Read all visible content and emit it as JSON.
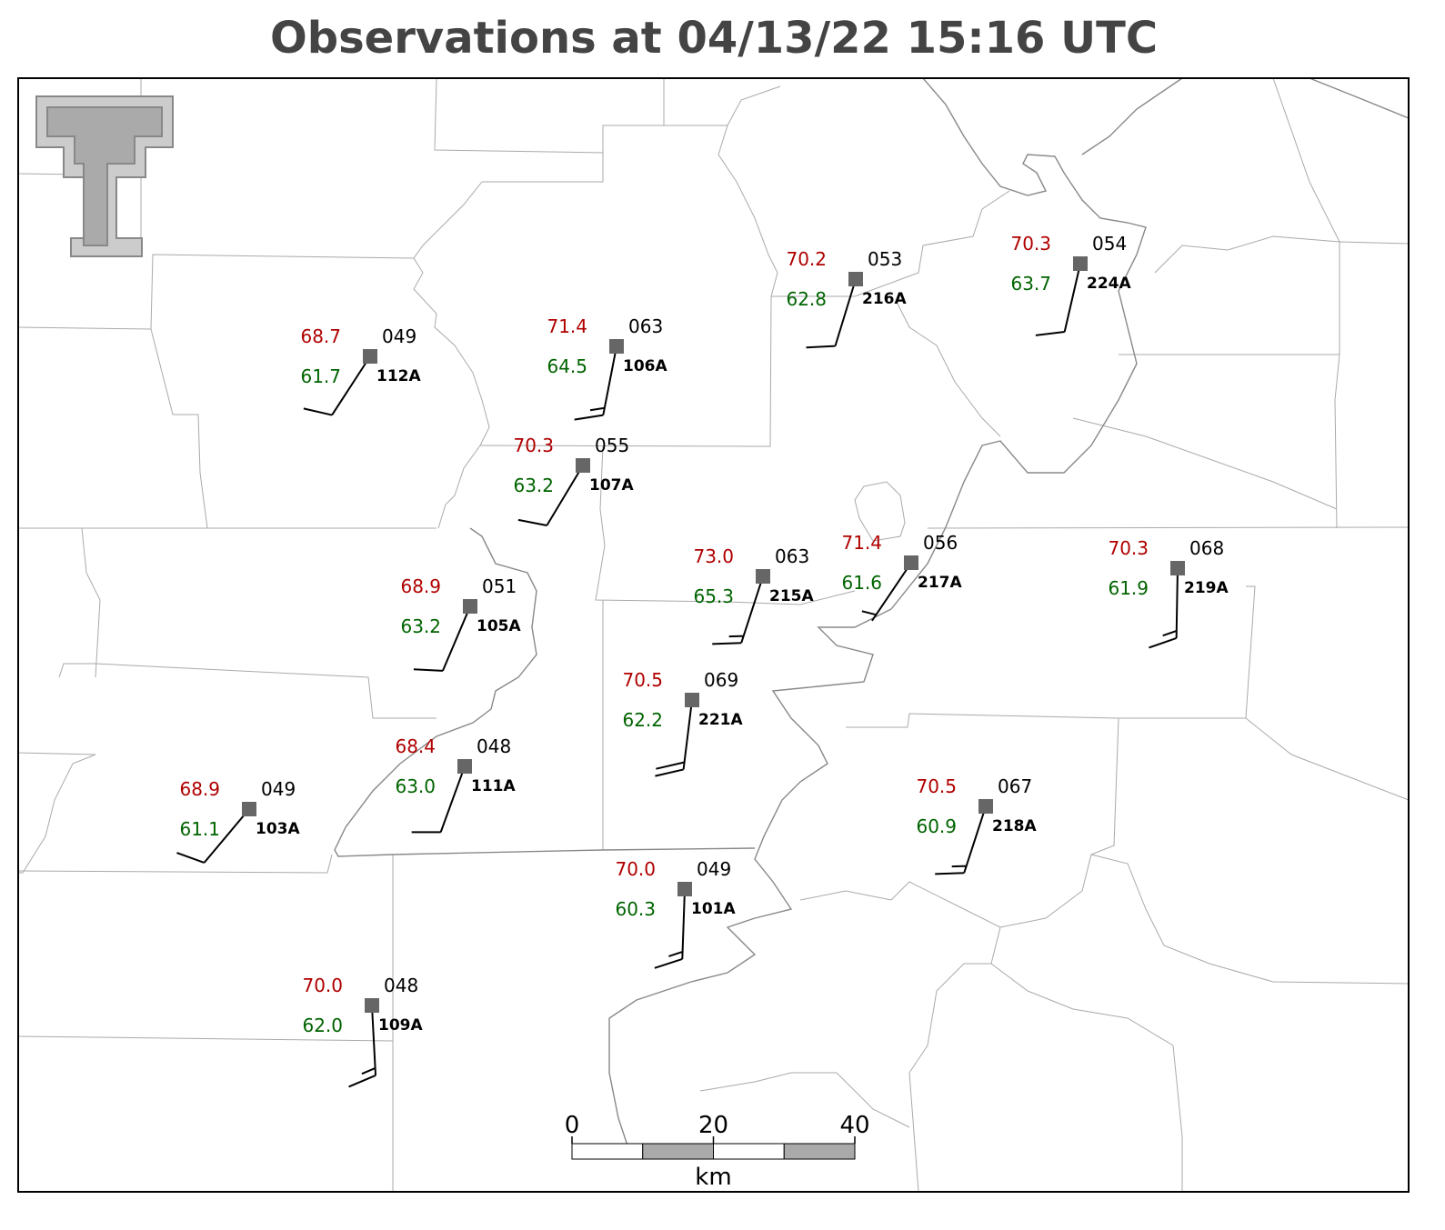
{
  "title": "Observations at 04/13/22 15:16 UTC",
  "stations": [
    {
      "id": "112A",
      "temperature": "68.7",
      "dewpoint": "61.7",
      "pressure": "049",
      "wind_direction": 213,
      "wind_speed": 10
    },
    {
      "id": "106A",
      "temperature": "71.4",
      "dewpoint": "64.5",
      "pressure": "063",
      "wind_direction": 191,
      "wind_speed": 15
    },
    {
      "id": "107A",
      "temperature": "70.3",
      "dewpoint": "63.2",
      "pressure": "055",
      "wind_direction": 211,
      "wind_speed": 10
    },
    {
      "id": "216A",
      "temperature": "70.2",
      "dewpoint": "62.8",
      "pressure": "053",
      "wind_direction": 197,
      "wind_speed": 10
    },
    {
      "id": "224A",
      "temperature": "70.3",
      "dewpoint": "63.7",
      "pressure": "054",
      "wind_direction": 193,
      "wind_speed": 10
    },
    {
      "id": "105A",
      "temperature": "68.9",
      "dewpoint": "63.2",
      "pressure": "051",
      "wind_direction": 203,
      "wind_speed": 10
    },
    {
      "id": "215A",
      "temperature": "73.0",
      "dewpoint": "65.3",
      "pressure": "063",
      "wind_direction": 198,
      "wind_speed": 15
    },
    {
      "id": "217A",
      "temperature": "71.4",
      "dewpoint": "61.6",
      "pressure": "056",
      "wind_direction": 214,
      "wind_speed": 5
    },
    {
      "id": "219A",
      "temperature": "70.3",
      "dewpoint": "61.9",
      "pressure": "068",
      "wind_direction": 181,
      "wind_speed": 15
    },
    {
      "id": "221A",
      "temperature": "70.5",
      "dewpoint": "62.2",
      "pressure": "069",
      "wind_direction": 187,
      "wind_speed": 20
    },
    {
      "id": "111A",
      "temperature": "68.4",
      "dewpoint": "63.0",
      "pressure": "048",
      "wind_direction": 200,
      "wind_speed": 10
    },
    {
      "id": "103A",
      "temperature": "68.9",
      "dewpoint": "61.1",
      "pressure": "049",
      "wind_direction": 220,
      "wind_speed": 10
    },
    {
      "id": "218A",
      "temperature": "70.5",
      "dewpoint": "60.9",
      "pressure": "067",
      "wind_direction": 198,
      "wind_speed": 15
    },
    {
      "id": "101A",
      "temperature": "70.0",
      "dewpoint": "60.3",
      "pressure": "049",
      "wind_direction": 182,
      "wind_speed": 15
    },
    {
      "id": "109A",
      "temperature": "70.0",
      "dewpoint": "62.0",
      "pressure": "048",
      "wind_direction": 177,
      "wind_speed": 15
    }
  ],
  "scale_bar": {
    "ticks": [
      0,
      20,
      40
    ],
    "unit": "km"
  }
}
